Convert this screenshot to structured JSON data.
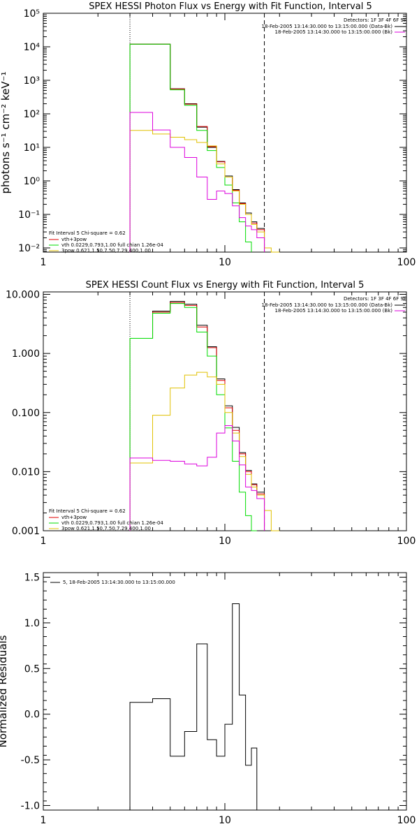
{
  "chart_data": [
    {
      "id": "photon",
      "type": "line",
      "title": "SPEX HESSI Photon Flux vs Energy with Fit Function, Interval 5",
      "ylabel": "photons s⁻¹ cm⁻² keV⁻¹",
      "xlabel": "",
      "xscale": "log",
      "yscale": "log",
      "xlim": [
        1,
        100
      ],
      "ylim": [
        0.0075,
        100000
      ],
      "xticks": [
        {
          "value": 1,
          "label": "1"
        },
        {
          "value": 10,
          "label": "10"
        },
        {
          "value": 100,
          "label": "100"
        }
      ],
      "yticks": [
        {
          "value": 0.01,
          "label": "10⁻²"
        },
        {
          "value": 0.1,
          "label": "10⁻¹"
        },
        {
          "value": 1,
          "label": "10⁰"
        },
        {
          "value": 10,
          "label": "10¹"
        },
        {
          "value": 100,
          "label": "10²"
        },
        {
          "value": 1000,
          "label": "10³"
        },
        {
          "value": 10000,
          "label": "10⁴"
        },
        {
          "value": 100000,
          "label": "10⁵"
        }
      ],
      "vlines": [
        {
          "x": 3.0,
          "style": "dotted"
        },
        {
          "x": 16.5,
          "style": "dashed"
        }
      ],
      "x_edges": [
        3.0,
        4.0,
        5.0,
        6.0,
        7.0,
        8.0,
        9.0,
        10.0,
        11.0,
        12.0,
        13.0,
        14.0,
        15.0,
        16.5,
        18.0,
        20.0
      ],
      "series": [
        {
          "name": "",
          "color": "#000000",
          "values": [
            12000,
            12000,
            560,
            200,
            40,
            10,
            3.8,
            1.4,
            0.55,
            0.22,
            0.11,
            0.06,
            0.038,
            null,
            null
          ]
        },
        {
          "name": "vth+3pow",
          "color": "#e00000",
          "values": [
            12000,
            12000,
            550,
            195,
            42,
            10.5,
            3.7,
            1.3,
            0.52,
            0.21,
            0.1,
            0.055,
            0.035,
            null,
            null
          ]
        },
        {
          "name": "vth 0.0229,0.793,1.00 full chian 1.26e-04",
          "color": "#00dd00",
          "values": [
            12000,
            12000,
            520,
            180,
            32,
            8,
            2.5,
            0.75,
            0.22,
            0.06,
            0.015,
            null,
            null,
            null,
            null
          ]
        },
        {
          "name": "3pow 0.621,1.50,7.50,7.29,400,1.00",
          "color": "#e0c000",
          "values": [
            32,
            25,
            20,
            17,
            14,
            11,
            3.2,
            1.3,
            0.5,
            0.2,
            0.1,
            0.05,
            0.03,
            0.01,
            0.007
          ]
        },
        {
          "name": "",
          "color": "#dd00dd",
          "values": [
            110,
            33,
            10,
            5,
            1.3,
            0.28,
            0.5,
            0.42,
            0.18,
            0.08,
            0.045,
            0.035,
            0.02,
            null,
            null
          ]
        }
      ],
      "legend": {
        "header": "Fit Interval 5   Chi-square = 0.62",
        "position": "bottom-left"
      },
      "detector_legend": {
        "header": "Detectors: 1F 3F 4F 6F 9F",
        "entries": [
          {
            "label": "18-Feb-2005 13:14:30.000 to 13:15:00.000 (Data-Bk)",
            "color": "#000000"
          },
          {
            "label": "18-Feb-2005 13:14:30.000 to 13:15:00.000 (Bk)",
            "color": "#dd00dd"
          }
        ],
        "position": "top-right"
      }
    },
    {
      "id": "count",
      "type": "line",
      "title": "SPEX HESSI Count Flux vs Energy with Fit Function, Interval 5",
      "ylabel": "",
      "xlabel": "",
      "xscale": "log",
      "yscale": "log",
      "xlim": [
        1,
        100
      ],
      "ylim": [
        0.001,
        11
      ],
      "xticks": [
        {
          "value": 1,
          "label": "1"
        },
        {
          "value": 10,
          "label": "10"
        },
        {
          "value": 100,
          "label": "100"
        }
      ],
      "yticks": [
        {
          "value": 0.001,
          "label": "0.001"
        },
        {
          "value": 0.01,
          "label": "0.010"
        },
        {
          "value": 0.1,
          "label": "0.100"
        },
        {
          "value": 1,
          "label": "1.000"
        },
        {
          "value": 10,
          "label": "10.000"
        }
      ],
      "vlines": [
        {
          "x": 3.0,
          "style": "dotted"
        },
        {
          "x": 16.5,
          "style": "dashed"
        }
      ],
      "x_edges": [
        3.0,
        4.0,
        5.0,
        6.0,
        7.0,
        8.0,
        9.0,
        10.0,
        11.0,
        12.0,
        13.0,
        14.0,
        15.0,
        16.5,
        18.0,
        20.0
      ],
      "series": [
        {
          "name": "",
          "color": "#000000",
          "values": [
            1.8,
            5.2,
            7.6,
            6.8,
            3.0,
            1.3,
            0.37,
            0.13,
            0.056,
            0.021,
            0.0105,
            0.0062,
            0.0045,
            null,
            null
          ]
        },
        {
          "name": "vth+3pow",
          "color": "#e00000",
          "values": [
            1.8,
            5.0,
            7.3,
            6.5,
            2.8,
            1.25,
            0.35,
            0.12,
            0.05,
            0.02,
            0.01,
            0.006,
            0.0042,
            null,
            null
          ]
        },
        {
          "name": "vth 0.0229,0.793,1.00 full chian 1.26e-04",
          "color": "#00dd00",
          "values": [
            1.8,
            4.8,
            7.0,
            6.0,
            2.3,
            0.9,
            0.2,
            0.055,
            0.015,
            0.0045,
            0.0018,
            0.001,
            null,
            null,
            null
          ]
        },
        {
          "name": "3pow 0.621,1.50,7.50,7.29,400,1.00",
          "color": "#e0c000",
          "values": [
            0.014,
            0.09,
            0.26,
            0.43,
            0.48,
            0.4,
            0.3,
            0.1,
            0.045,
            0.018,
            0.009,
            0.0055,
            0.004,
            0.0022,
            0.001
          ]
        },
        {
          "name": "",
          "color": "#dd00dd",
          "values": [
            0.017,
            0.0155,
            0.015,
            0.0135,
            0.0125,
            0.0175,
            0.045,
            0.06,
            0.033,
            0.013,
            0.0055,
            0.0048,
            0.0035,
            null,
            null
          ]
        }
      ],
      "legend": {
        "header": "Fit Interval 5   Chi-square = 0.62",
        "position": "bottom-left"
      },
      "detector_legend": {
        "header": "Detectors: 1F 3F 4F 6F 9F",
        "entries": [
          {
            "label": "18-Feb-2005 13:14:30.000 to 13:15:00.000 (Data-Bk)",
            "color": "#000000"
          },
          {
            "label": "18-Feb-2005 13:14:30.000 to 13:15:00.000 (Bk)",
            "color": "#dd00dd"
          }
        ],
        "position": "top-right"
      }
    },
    {
      "id": "resid",
      "type": "line",
      "title": "",
      "ylabel": "Normalized Residuals",
      "xlabel": "",
      "xscale": "log",
      "yscale": "linear",
      "xlim": [
        1,
        100
      ],
      "ylim": [
        -1.05,
        1.55
      ],
      "xticks": [
        {
          "value": 1,
          "label": "1"
        },
        {
          "value": 10,
          "label": "10"
        },
        {
          "value": 100,
          "label": "100"
        }
      ],
      "yticks": [
        {
          "value": -1.0,
          "label": "-1.0"
        },
        {
          "value": -0.5,
          "label": "-0.5"
        },
        {
          "value": 0.0,
          "label": "0.0"
        },
        {
          "value": 0.5,
          "label": "0.5"
        },
        {
          "value": 1.0,
          "label": "1.0"
        },
        {
          "value": 1.5,
          "label": "1.5"
        }
      ],
      "vlines": [],
      "x_edges": [
        3.0,
        4.0,
        5.0,
        6.0,
        7.0,
        8.0,
        9.0,
        10.0,
        11.0,
        12.0,
        13.0,
        14.0,
        15.0,
        16.5
      ],
      "baseline": -1.05,
      "series": [
        {
          "name": "",
          "color": "#000000",
          "values": [
            0.13,
            0.17,
            -0.46,
            -0.19,
            0.77,
            -0.28,
            -0.46,
            -0.11,
            1.21,
            0.21,
            -0.56,
            -0.37,
            null
          ]
        }
      ],
      "legend": {
        "entries": [
          {
            "label": "5, 18-Feb-2005 13:14:30.000 to 13:15:00.000",
            "color": "#000000"
          }
        ],
        "position": "top-left"
      }
    }
  ]
}
